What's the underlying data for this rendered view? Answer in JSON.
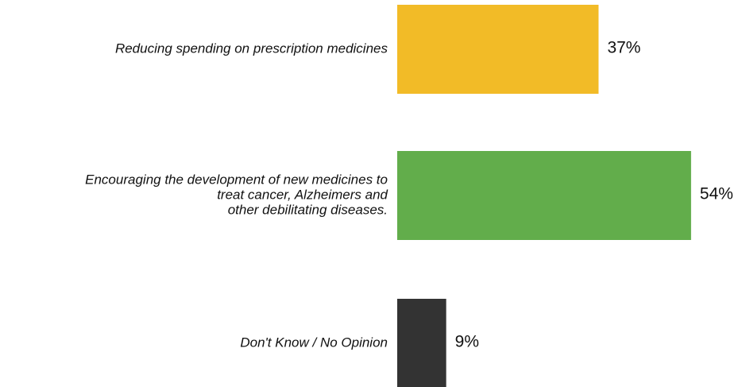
{
  "chart_data": {
    "type": "bar",
    "orientation": "horizontal",
    "categories": [
      [
        "Reducing spending on prescription medicines"
      ],
      [
        "Encouraging the development of new medicines to",
        "treat cancer, Alzheimers and",
        "other debilitating diseases."
      ],
      [
        "Don't Know / No Opinion"
      ]
    ],
    "values": [
      37,
      54,
      9
    ],
    "value_labels": [
      "37%",
      "54%",
      "9%"
    ],
    "colors": [
      "#f2bb27",
      "#62ad4b",
      "#333333"
    ],
    "xlim": [
      0,
      100
    ],
    "grid": false,
    "legend": "none",
    "title": "",
    "xlabel": "",
    "ylabel": ""
  }
}
